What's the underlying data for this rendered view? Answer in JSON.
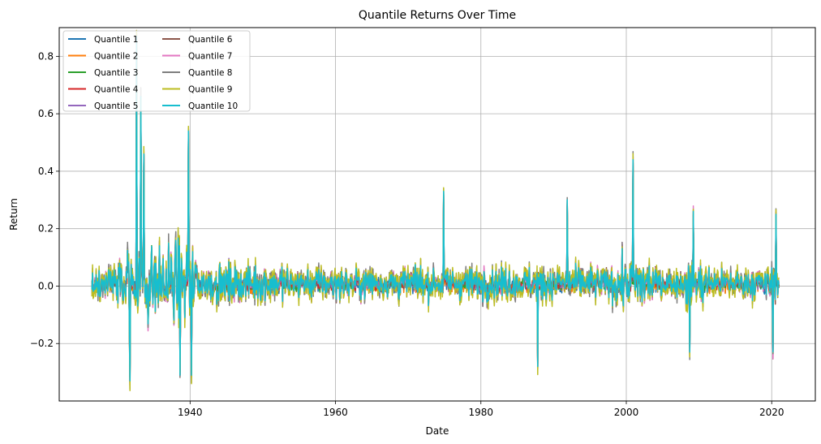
{
  "chart_data": {
    "type": "line",
    "title": "Quantile Returns Over Time",
    "xlabel": "Date",
    "ylabel": "Return",
    "xlim": [
      1922,
      2026
    ],
    "ylim": [
      -0.4,
      0.9
    ],
    "xticks": [
      1940,
      1960,
      1980,
      2000,
      2020
    ],
    "xtick_labels": [
      "1940",
      "1960",
      "1980",
      "2000",
      "2020"
    ],
    "yticks": [
      -0.2,
      0.0,
      0.2,
      0.4,
      0.6,
      0.8
    ],
    "ytick_labels": [
      "−0.2",
      "0.0",
      "0.2",
      "0.4",
      "0.6",
      "0.8"
    ],
    "grid": true,
    "legend": {
      "placement": "top-left",
      "columns": 2
    },
    "x_range": [
      1926.5,
      2021
    ],
    "series": [
      {
        "name": "Quantile 1",
        "color": "#1f77b4"
      },
      {
        "name": "Quantile 2",
        "color": "#ff7f0e"
      },
      {
        "name": "Quantile 3",
        "color": "#2ca02c"
      },
      {
        "name": "Quantile 4",
        "color": "#d62728"
      },
      {
        "name": "Quantile 5",
        "color": "#9467bd"
      },
      {
        "name": "Quantile 6",
        "color": "#8c564b"
      },
      {
        "name": "Quantile 7",
        "color": "#e377c2"
      },
      {
        "name": "Quantile 8",
        "color": "#7f7f7f"
      },
      {
        "name": "Quantile 9",
        "color": "#bcbd22"
      },
      {
        "name": "Quantile 10",
        "color": "#17becf"
      }
    ],
    "notable_points": [
      {
        "x": 1932.6,
        "y": 0.87
      },
      {
        "x": 1933.2,
        "y": 0.66
      },
      {
        "x": 1933.6,
        "y": 0.46
      },
      {
        "x": 1939.8,
        "y": 0.54
      },
      {
        "x": 1931.7,
        "y": -0.33
      },
      {
        "x": 1938.6,
        "y": -0.31
      },
      {
        "x": 1940.2,
        "y": -0.31
      },
      {
        "x": 1974.9,
        "y": 0.33
      },
      {
        "x": 1987.8,
        "y": -0.28
      },
      {
        "x": 1991.9,
        "y": 0.3
      },
      {
        "x": 2000.9,
        "y": 0.44
      },
      {
        "x": 2008.7,
        "y": -0.23
      },
      {
        "x": 2009.2,
        "y": 0.26
      },
      {
        "x": 2020.2,
        "y": -0.23
      },
      {
        "x": 2020.6,
        "y": 0.25
      }
    ]
  }
}
